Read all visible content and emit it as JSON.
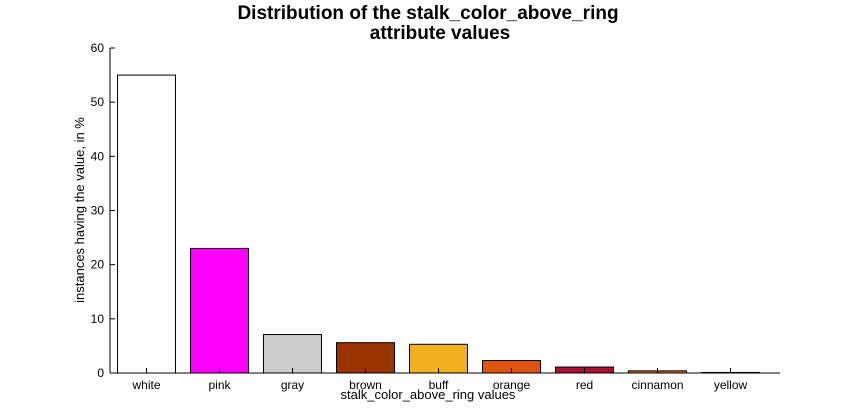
{
  "chart_data": {
    "type": "bar",
    "title": "Distribution of the stalk_color_above_ring attribute values",
    "title_lines": [
      "Distribution of the stalk_color_above_ring",
      "attribute values"
    ],
    "xlabel": "stalk_color_above_ring values",
    "ylabel": "instances having the value, in %",
    "ylim": [
      0,
      60
    ],
    "yticks": [
      0,
      10,
      20,
      30,
      40,
      50,
      60
    ],
    "categories": [
      "white",
      "pink",
      "gray",
      "brown",
      "buff",
      "orange",
      "red",
      "cinnamon",
      "yellow"
    ],
    "values": [
      55.0,
      23.0,
      7.1,
      5.6,
      5.3,
      2.3,
      1.1,
      0.4,
      0.1
    ],
    "colors": [
      "#ffffff",
      "#ff00ff",
      "#cccccc",
      "#993300",
      "#f0b020",
      "#dd5511",
      "#aa1133",
      "#d2691e",
      "#ffee00"
    ],
    "grid": false,
    "legend": "none"
  }
}
